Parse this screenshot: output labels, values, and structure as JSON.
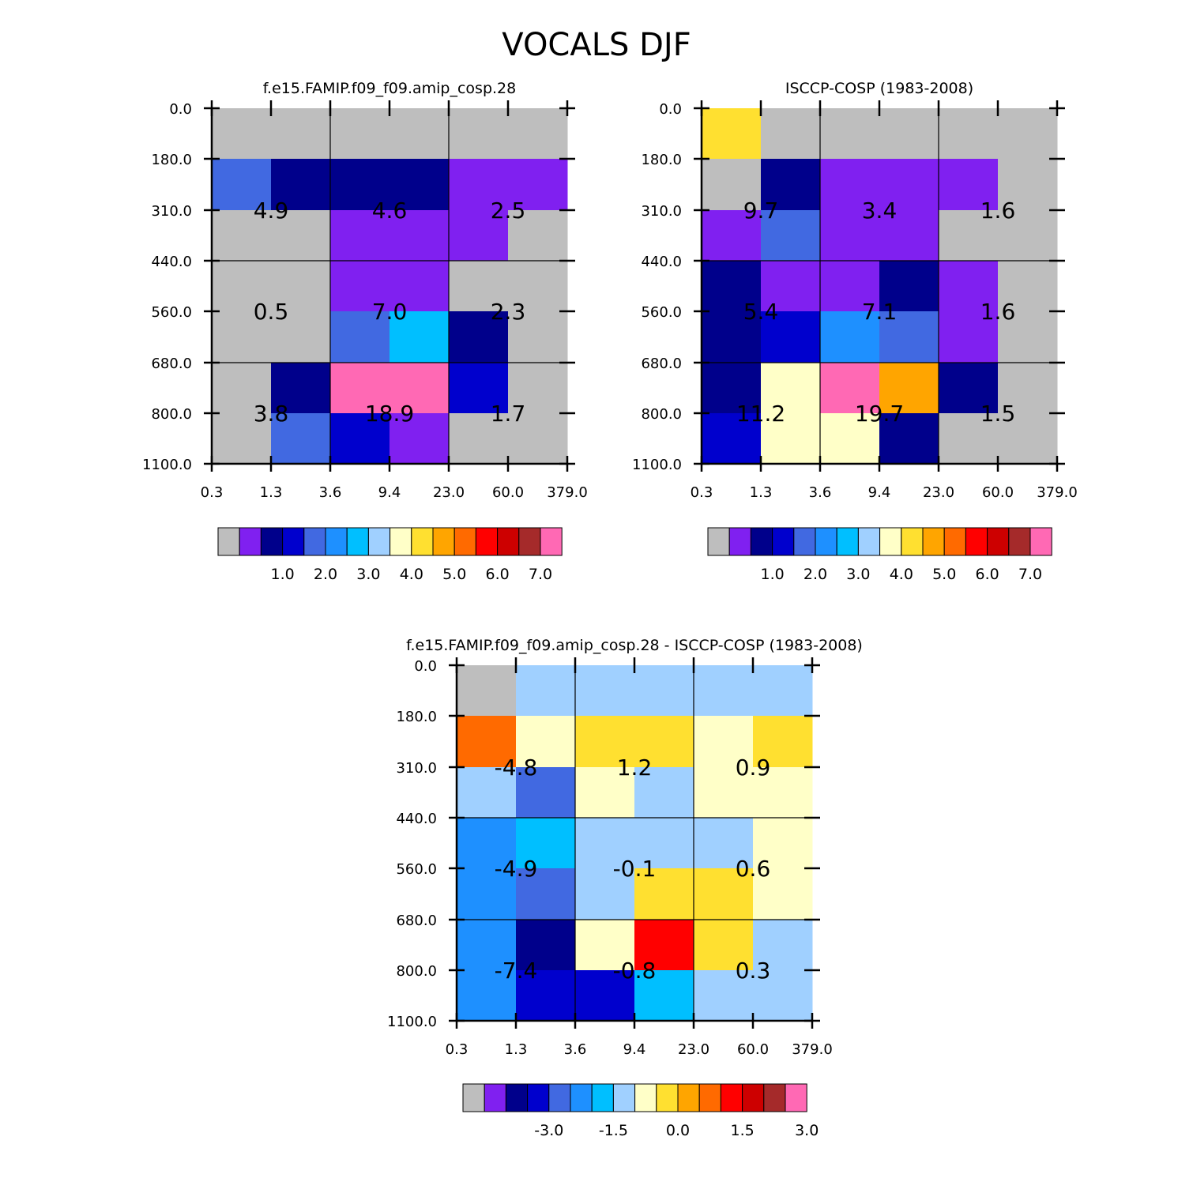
{
  "title": "VOCALS DJF",
  "colors": {
    "palette": [
      "#bebebe",
      "#8020f0",
      "#00008b",
      "#0000cd",
      "#4169e1",
      "#1e90ff",
      "#00bfff",
      "#a0d0ff",
      "#ffffc8",
      "#ffe030",
      "#ffa500",
      "#ff6a00",
      "#ff0000",
      "#cd0000",
      "#a52a2a",
      "#ff69b4"
    ]
  },
  "chart_data": [
    {
      "id": "model",
      "type": "heatmap",
      "title": "f.e15.FAMIP.f09_f09.amip_cosp.28",
      "x_ticks": [
        "0.3",
        "1.3",
        "3.6",
        "9.4",
        "23.0",
        "60.0",
        "379.0"
      ],
      "y_ticks": [
        "0.0",
        "180.0",
        "310.0",
        "440.0",
        "560.0",
        "680.0",
        "800.0",
        "1100.0"
      ],
      "cells": [
        [
          0,
          0,
          0,
          0,
          0,
          0
        ],
        [
          4,
          2,
          2,
          2,
          1,
          1
        ],
        [
          0,
          0,
          1,
          1,
          1,
          0
        ],
        [
          0,
          0,
          1,
          1,
          0,
          0
        ],
        [
          0,
          0,
          4,
          6,
          2,
          0
        ],
        [
          0,
          2,
          15,
          15,
          3,
          0
        ],
        [
          0,
          4,
          3,
          1,
          0,
          0
        ]
      ],
      "block_values": [
        [
          "4.9",
          "4.6",
          "2.5"
        ],
        [
          "0.5",
          "7.0",
          "2.3"
        ],
        [
          "3.8",
          "18.9",
          "1.7"
        ]
      ],
      "colorbar_labels": [
        "1.0",
        "2.0",
        "3.0",
        "4.0",
        "5.0",
        "6.0",
        "7.0"
      ]
    },
    {
      "id": "obs",
      "type": "heatmap",
      "title": "ISCCP-COSP (1983-2008)",
      "x_ticks": [
        "0.3",
        "1.3",
        "3.6",
        "9.4",
        "23.0",
        "60.0",
        "379.0"
      ],
      "y_ticks": [
        "0.0",
        "180.0",
        "310.0",
        "440.0",
        "560.0",
        "680.0",
        "800.0",
        "1100.0"
      ],
      "cells": [
        [
          9,
          0,
          0,
          0,
          0,
          0
        ],
        [
          0,
          2,
          1,
          1,
          1,
          0
        ],
        [
          1,
          4,
          1,
          1,
          0,
          0
        ],
        [
          2,
          1,
          1,
          2,
          1,
          0
        ],
        [
          2,
          3,
          5,
          4,
          1,
          0
        ],
        [
          2,
          8,
          15,
          10,
          2,
          0
        ],
        [
          3,
          8,
          8,
          2,
          0,
          0
        ]
      ],
      "block_values": [
        [
          "9.7",
          "3.4",
          "1.6"
        ],
        [
          "5.4",
          "7.1",
          "1.6"
        ],
        [
          "11.2",
          "19.7",
          "1.5"
        ]
      ],
      "colorbar_labels": [
        "1.0",
        "2.0",
        "3.0",
        "4.0",
        "5.0",
        "6.0",
        "7.0"
      ]
    },
    {
      "id": "diff",
      "type": "heatmap",
      "title": "f.e15.FAMIP.f09_f09.amip_cosp.28 - ISCCP-COSP (1983-2008)",
      "x_ticks": [
        "0.3",
        "1.3",
        "3.6",
        "9.4",
        "23.0",
        "60.0",
        "379.0"
      ],
      "y_ticks": [
        "0.0",
        "180.0",
        "310.0",
        "440.0",
        "560.0",
        "680.0",
        "800.0",
        "1100.0"
      ],
      "cells": [
        [
          0,
          7,
          7,
          7,
          7,
          7
        ],
        [
          11,
          8,
          9,
          9,
          8,
          9
        ],
        [
          7,
          4,
          8,
          7,
          8,
          8
        ],
        [
          5,
          6,
          7,
          7,
          7,
          8
        ],
        [
          5,
          4,
          7,
          9,
          9,
          8
        ],
        [
          5,
          2,
          8,
          12,
          9,
          7
        ],
        [
          5,
          3,
          3,
          6,
          7,
          7
        ]
      ],
      "block_values": [
        [
          "-4.8",
          "1.2",
          "0.9"
        ],
        [
          "-4.9",
          "-0.1",
          "0.6"
        ],
        [
          "-7.4",
          "-0.8",
          "0.3"
        ]
      ],
      "colorbar_labels": [
        "-3.0",
        "-1.5",
        "0.0",
        "1.5",
        "3.0"
      ]
    }
  ]
}
